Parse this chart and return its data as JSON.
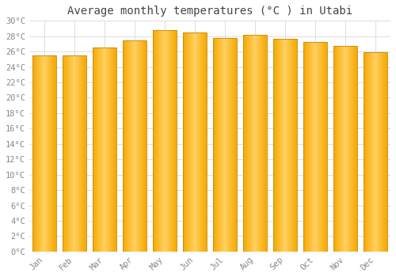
{
  "title": "Average monthly temperatures (°C ) in Utabi",
  "months": [
    "Jan",
    "Feb",
    "Mar",
    "Apr",
    "May",
    "Jun",
    "Jul",
    "Aug",
    "Sep",
    "Oct",
    "Nov",
    "Dec"
  ],
  "values": [
    25.5,
    25.5,
    26.5,
    27.5,
    28.8,
    28.5,
    27.8,
    28.2,
    27.7,
    27.2,
    26.7,
    25.9
  ],
  "ylim": [
    0,
    30
  ],
  "ytick_step": 2,
  "bar_color_center": "#FFD060",
  "bar_color_edge": "#F5A800",
  "bar_outline_color": "#C8880A",
  "background_color": "#FFFFFF",
  "grid_color": "#DDDDDD",
  "title_fontsize": 10,
  "tick_fontsize": 7.5,
  "font_family": "monospace"
}
